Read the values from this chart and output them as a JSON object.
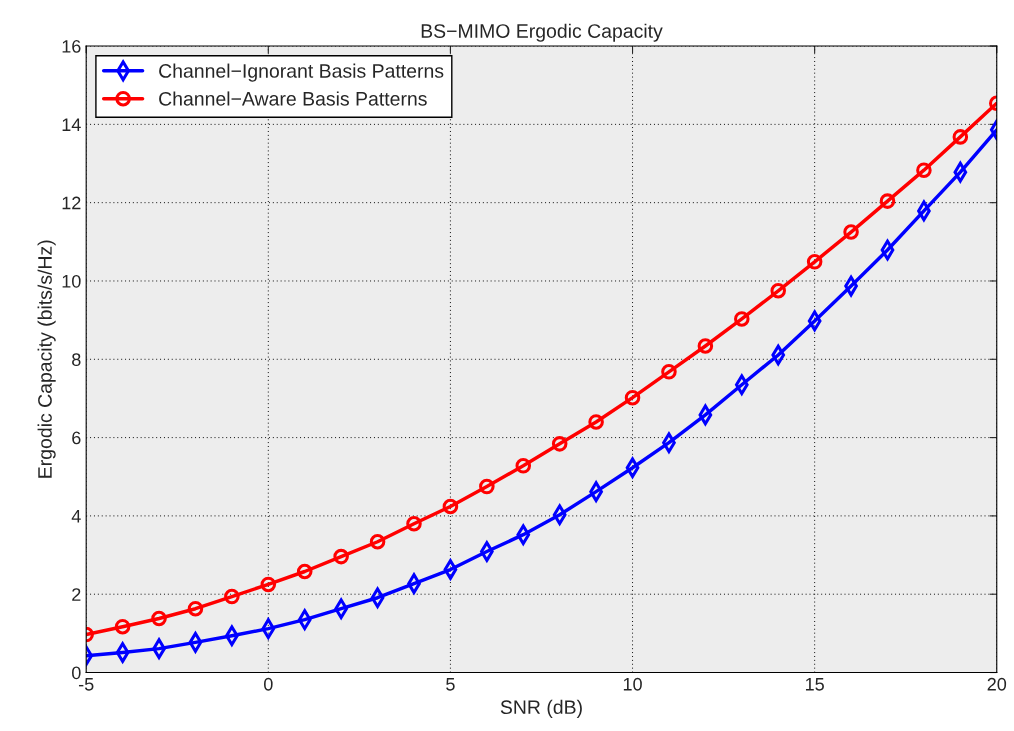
{
  "chart_data": {
    "type": "line",
    "title": "BS−MIMO Ergodic Capacity",
    "xlabel": "SNR (dB)",
    "ylabel": "Ergodic Capacity (bits/s/Hz)",
    "x": [
      -5,
      -4,
      -3,
      -2,
      -1,
      0,
      1,
      2,
      3,
      4,
      5,
      6,
      7,
      8,
      9,
      10,
      11,
      12,
      13,
      14,
      15,
      16,
      17,
      18,
      19,
      20
    ],
    "series": [
      {
        "name": "Channel−Ignorant Basis Patterns",
        "color": "#0000ff",
        "marker": "diamond",
        "values": [
          0.43,
          0.51,
          0.61,
          0.77,
          0.94,
          1.12,
          1.35,
          1.63,
          1.91,
          2.27,
          2.63,
          3.09,
          3.52,
          4.03,
          4.62,
          5.23,
          5.87,
          6.58,
          7.35,
          8.11,
          8.98,
          9.87,
          10.79,
          11.79,
          12.78,
          13.86
        ]
      },
      {
        "name": "Channel−Aware Basis Patterns",
        "color": "#ff0000",
        "marker": "circle",
        "values": [
          0.97,
          1.17,
          1.38,
          1.63,
          1.94,
          2.25,
          2.58,
          2.96,
          3.34,
          3.8,
          4.24,
          4.75,
          5.28,
          5.84,
          6.4,
          7.02,
          7.68,
          8.34,
          9.03,
          9.75,
          10.49,
          11.25,
          12.04,
          12.83,
          13.68,
          14.54
        ]
      }
    ],
    "xlim": [
      -5,
      20
    ],
    "xticks": [
      -5,
      0,
      5,
      10,
      15,
      20
    ],
    "ylim": [
      0,
      16
    ],
    "yticks": [
      0,
      2,
      4,
      6,
      8,
      10,
      12,
      14,
      16
    ],
    "grid": true,
    "legend": "top left",
    "line_style": "solid"
  }
}
